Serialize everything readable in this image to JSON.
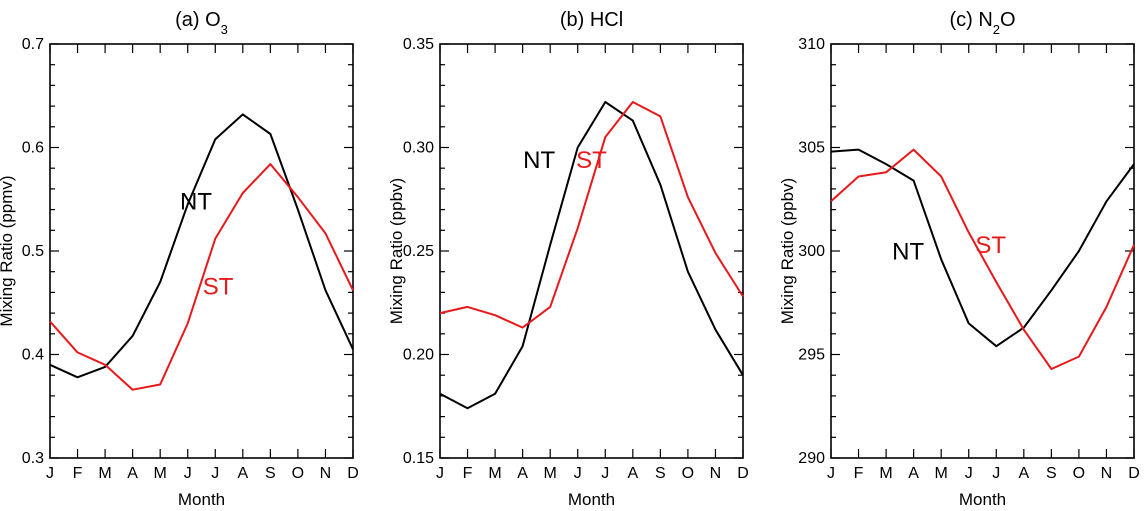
{
  "chart_data": [
    {
      "type": "line",
      "title_prefix": "(a) O",
      "title_sub": "3",
      "xlabel": "Month",
      "ylabel": "Mixing Ratio (ppmv)",
      "categories": [
        "J",
        "F",
        "M",
        "A",
        "M",
        "J",
        "J",
        "A",
        "S",
        "O",
        "N",
        "D"
      ],
      "ylim": [
        0.3,
        0.7
      ],
      "yticks": [
        0.3,
        0.4,
        0.5,
        0.6,
        0.7
      ],
      "ytick_labels": [
        "0.3",
        "0.4",
        "0.5",
        "0.6",
        "0.7"
      ],
      "series": [
        {
          "name": "NT",
          "color": "#000000",
          "values": [
            0.39,
            0.378,
            0.388,
            0.418,
            0.47,
            0.545,
            0.608,
            0.632,
            0.613,
            0.54,
            0.462,
            0.405
          ],
          "label_at": [
            5.3,
            0.54
          ]
        },
        {
          "name": "ST",
          "color": "#e8191b",
          "values": [
            0.432,
            0.402,
            0.39,
            0.366,
            0.371,
            0.43,
            0.512,
            0.556,
            0.584,
            0.552,
            0.517,
            0.462
          ],
          "label_at": [
            6.1,
            0.458
          ]
        }
      ]
    },
    {
      "type": "line",
      "title_prefix": "(b) HCl",
      "title_sub": "",
      "xlabel": "Month",
      "ylabel": "Mixing Ratio (ppbv)",
      "categories": [
        "J",
        "F",
        "M",
        "A",
        "M",
        "J",
        "J",
        "A",
        "S",
        "O",
        "N",
        "D"
      ],
      "ylim": [
        0.15,
        0.35
      ],
      "yticks": [
        0.15,
        0.2,
        0.25,
        0.3,
        0.35
      ],
      "ytick_labels": [
        "0.15",
        "0.20",
        "0.25",
        "0.30",
        "0.35"
      ],
      "series": [
        {
          "name": "NT",
          "color": "#000000",
          "values": [
            0.181,
            0.174,
            0.181,
            0.204,
            0.253,
            0.3,
            0.322,
            0.313,
            0.282,
            0.24,
            0.212,
            0.19
          ],
          "label_at": [
            3.6,
            0.29
          ]
        },
        {
          "name": "ST",
          "color": "#e8191b",
          "values": [
            0.22,
            0.223,
            0.219,
            0.213,
            0.223,
            0.261,
            0.305,
            0.322,
            0.315,
            0.276,
            0.249,
            0.228
          ],
          "label_at": [
            5.5,
            0.29
          ]
        }
      ]
    },
    {
      "type": "line",
      "title_prefix": "(c) N",
      "title_sub": "2",
      "title_suffix": "O",
      "xlabel": "Month",
      "ylabel": "Mixing Ratio (ppbv)",
      "categories": [
        "J",
        "F",
        "M",
        "A",
        "M",
        "J",
        "J",
        "A",
        "S",
        "O",
        "N",
        "D"
      ],
      "ylim": [
        290,
        310
      ],
      "yticks": [
        290,
        295,
        300,
        305,
        310
      ],
      "ytick_labels": [
        "290",
        "295",
        "300",
        "305",
        "310"
      ],
      "series": [
        {
          "name": "NT",
          "color": "#000000",
          "values": [
            304.8,
            304.9,
            304.2,
            303.4,
            299.6,
            296.5,
            295.4,
            296.3,
            298.1,
            300.0,
            302.4,
            304.2
          ],
          "label_at": [
            2.8,
            299.6
          ]
        },
        {
          "name": "ST",
          "color": "#e8191b",
          "values": [
            302.4,
            303.6,
            303.8,
            304.9,
            303.6,
            300.9,
            298.5,
            296.2,
            294.3,
            294.9,
            297.3,
            300.3
          ],
          "label_at": [
            5.8,
            299.9
          ]
        }
      ]
    }
  ]
}
